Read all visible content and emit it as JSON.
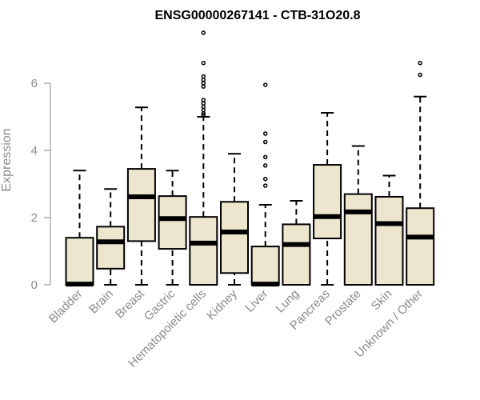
{
  "chart_data": {
    "type": "box",
    "title": "ENSG00000267141 - CTB-31O20.8",
    "xlabel": "",
    "ylabel": "Expression",
    "ylim": [
      0,
      7.6
    ],
    "yticks": [
      0,
      2,
      4,
      6
    ],
    "grid": false,
    "colors": {
      "box_fill": "#ede6cf",
      "stroke": "#000000",
      "text": "#8a8a8a"
    },
    "categories": [
      "Bladder",
      "Brain",
      "Breast",
      "Gastric",
      "Hematopoietic cells",
      "Kidney",
      "Liver",
      "Lung",
      "Pancreas",
      "Prostate",
      "Skin",
      "Unknown / Other"
    ],
    "boxes": [
      {
        "label": "Bladder",
        "min": 0,
        "q1": 0,
        "median": 0.02,
        "q3": 1.4,
        "max": 3.4,
        "outliers": []
      },
      {
        "label": "Brain",
        "min": 0,
        "q1": 0.48,
        "median": 1.28,
        "q3": 1.73,
        "max": 2.85,
        "outliers": []
      },
      {
        "label": "Breast",
        "min": 0,
        "q1": 1.3,
        "median": 2.62,
        "q3": 3.45,
        "max": 5.28,
        "outliers": []
      },
      {
        "label": "Gastric",
        "min": 0,
        "q1": 1.07,
        "median": 1.97,
        "q3": 2.64,
        "max": 3.4,
        "outliers": []
      },
      {
        "label": "Hematopoietic cells",
        "min": 0,
        "q1": 0,
        "median": 1.24,
        "q3": 2.02,
        "max": 5.0,
        "outliers": [
          5.05,
          5.1,
          5.2,
          5.3,
          5.4,
          5.5,
          5.9,
          6.0,
          6.1,
          6.2,
          6.6,
          7.5
        ]
      },
      {
        "label": "Kidney",
        "min": 0,
        "q1": 0.35,
        "median": 1.57,
        "q3": 2.47,
        "max": 3.9,
        "outliers": []
      },
      {
        "label": "Liver",
        "min": 0,
        "q1": 0,
        "median": 0.02,
        "q3": 1.14,
        "max": 2.38,
        "outliers": [
          2.95,
          3.15,
          3.55,
          3.8,
          4.25,
          4.5,
          5.95
        ]
      },
      {
        "label": "Lung",
        "min": 0,
        "q1": 0,
        "median": 1.2,
        "q3": 1.8,
        "max": 2.5,
        "outliers": []
      },
      {
        "label": "Pancreas",
        "min": 0,
        "q1": 1.38,
        "median": 2.03,
        "q3": 3.57,
        "max": 5.12,
        "outliers": []
      },
      {
        "label": "Prostate",
        "min": 0,
        "q1": 0,
        "median": 2.17,
        "q3": 2.7,
        "max": 4.13,
        "outliers": []
      },
      {
        "label": "Skin",
        "min": 0,
        "q1": 0,
        "median": 1.82,
        "q3": 2.62,
        "max": 3.25,
        "outliers": []
      },
      {
        "label": "Unknown / Other",
        "min": 0,
        "q1": 0,
        "median": 1.42,
        "q3": 2.28,
        "max": 5.6,
        "outliers": [
          6.25,
          6.6
        ]
      }
    ]
  }
}
